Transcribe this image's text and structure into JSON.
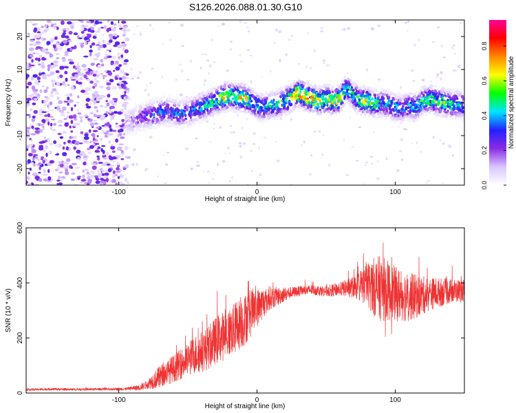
{
  "figure_title": "S126.2026.088.01.30.G10",
  "chart_data": [
    {
      "type": "heatmap",
      "title": "S126.2026.088.01.30.G10",
      "xlabel": "Height of straight line (km)",
      "ylabel": "Frequency (Hz)",
      "xlim": [
        -167,
        150
      ],
      "ylim": [
        -25,
        25
      ],
      "xticks": [
        -100,
        0,
        100
      ],
      "yticks": [
        -20,
        -10,
        0,
        10,
        20
      ],
      "colorbar": {
        "label": "Normalized spectral amplitude",
        "range": [
          0,
          0.95
        ],
        "ticks": [
          0.0,
          0.2,
          0.4,
          0.6,
          0.8
        ],
        "colors": [
          "#ffffff",
          "#d9c6ff",
          "#8a2be2",
          "#2222ff",
          "#00e5ff",
          "#00ff00",
          "#ffff00",
          "#ff8800",
          "#ff0000",
          "#ff0099"
        ]
      },
      "noise_region_x": [
        -167,
        -95
      ],
      "signal_start_x": -95,
      "ridge": {
        "x": [
          -95,
          -90,
          -85,
          -80,
          -75,
          -70,
          -65,
          -60,
          -55,
          -50,
          -45,
          -40,
          -35,
          -30,
          -25,
          -20,
          -15,
          -10,
          -5,
          0,
          5,
          10,
          15,
          20,
          25,
          30,
          35,
          40,
          45,
          50,
          55,
          60,
          65,
          70,
          75,
          80,
          85,
          90,
          95,
          100,
          105,
          110,
          115,
          120,
          125,
          130,
          135,
          140,
          145,
          150
        ],
        "freq_hz": [
          -6,
          -5.5,
          -4.5,
          -4,
          -3.5,
          -3,
          -2.5,
          -3,
          -3.5,
          -3,
          -2,
          -1.5,
          -0.5,
          0.5,
          1.5,
          2,
          1.5,
          1.5,
          0.5,
          -1,
          -1.5,
          -1,
          -0.5,
          0.5,
          1.5,
          3,
          2,
          1,
          0.5,
          1,
          0.5,
          1,
          4.5,
          2,
          0.5,
          0.5,
          -0.5,
          0,
          -0.5,
          -1.5,
          -2,
          -1,
          -1.5,
          0.5,
          1,
          0.5,
          0,
          -0.5,
          -0.5,
          -1
        ],
        "peak_amplitude": [
          0.15,
          0.2,
          0.25,
          0.3,
          0.35,
          0.4,
          0.35,
          0.35,
          0.4,
          0.35,
          0.4,
          0.45,
          0.5,
          0.55,
          0.75,
          0.7,
          0.65,
          0.75,
          0.6,
          0.5,
          0.45,
          0.5,
          0.5,
          0.55,
          0.7,
          0.85,
          0.8,
          0.8,
          0.75,
          0.75,
          0.8,
          0.7,
          0.5,
          0.55,
          0.6,
          0.7,
          0.6,
          0.45,
          0.5,
          0.45,
          0.4,
          0.45,
          0.5,
          0.55,
          0.6,
          0.55,
          0.65,
          0.55,
          0.5,
          0.45
        ]
      }
    },
    {
      "type": "line",
      "xlabel": "Height of straight line (km)",
      "ylabel": "SNR (10 * v/v)",
      "xlim": [
        -167,
        150
      ],
      "ylim": [
        0,
        600
      ],
      "xticks": [
        -100,
        0,
        100
      ],
      "yticks": [
        0,
        200,
        400,
        600
      ],
      "grid": false,
      "series": [
        {
          "name": "SNR",
          "color": "#ee3333",
          "x": [
            -167,
            -150,
            -130,
            -110,
            -95,
            -85,
            -80,
            -75,
            -70,
            -65,
            -60,
            -55,
            -50,
            -45,
            -40,
            -35,
            -30,
            -25,
            -20,
            -15,
            -10,
            -5,
            0,
            5,
            10,
            15,
            20,
            25,
            30,
            40,
            50,
            60,
            70,
            75,
            80,
            85,
            90,
            95,
            100,
            105,
            110,
            115,
            120,
            125,
            130,
            140,
            150
          ],
          "values": [
            12,
            14,
            13,
            14,
            15,
            20,
            30,
            45,
            60,
            75,
            90,
            105,
            120,
            140,
            150,
            165,
            190,
            205,
            220,
            240,
            260,
            290,
            310,
            330,
            345,
            350,
            360,
            365,
            370,
            375,
            370,
            378,
            385,
            390,
            395,
            385,
            380,
            370,
            360,
            355,
            350,
            350,
            355,
            360,
            365,
            370,
            372
          ],
          "noise_amplitude": [
            4,
            4,
            4,
            4,
            5,
            10,
            15,
            30,
            40,
            45,
            50,
            55,
            60,
            70,
            75,
            80,
            85,
            90,
            90,
            95,
            95,
            90,
            70,
            55,
            40,
            35,
            25,
            20,
            18,
            18,
            20,
            25,
            40,
            60,
            80,
            110,
            120,
            110,
            100,
            95,
            90,
            80,
            70,
            60,
            55,
            45,
            40
          ]
        }
      ]
    }
  ]
}
